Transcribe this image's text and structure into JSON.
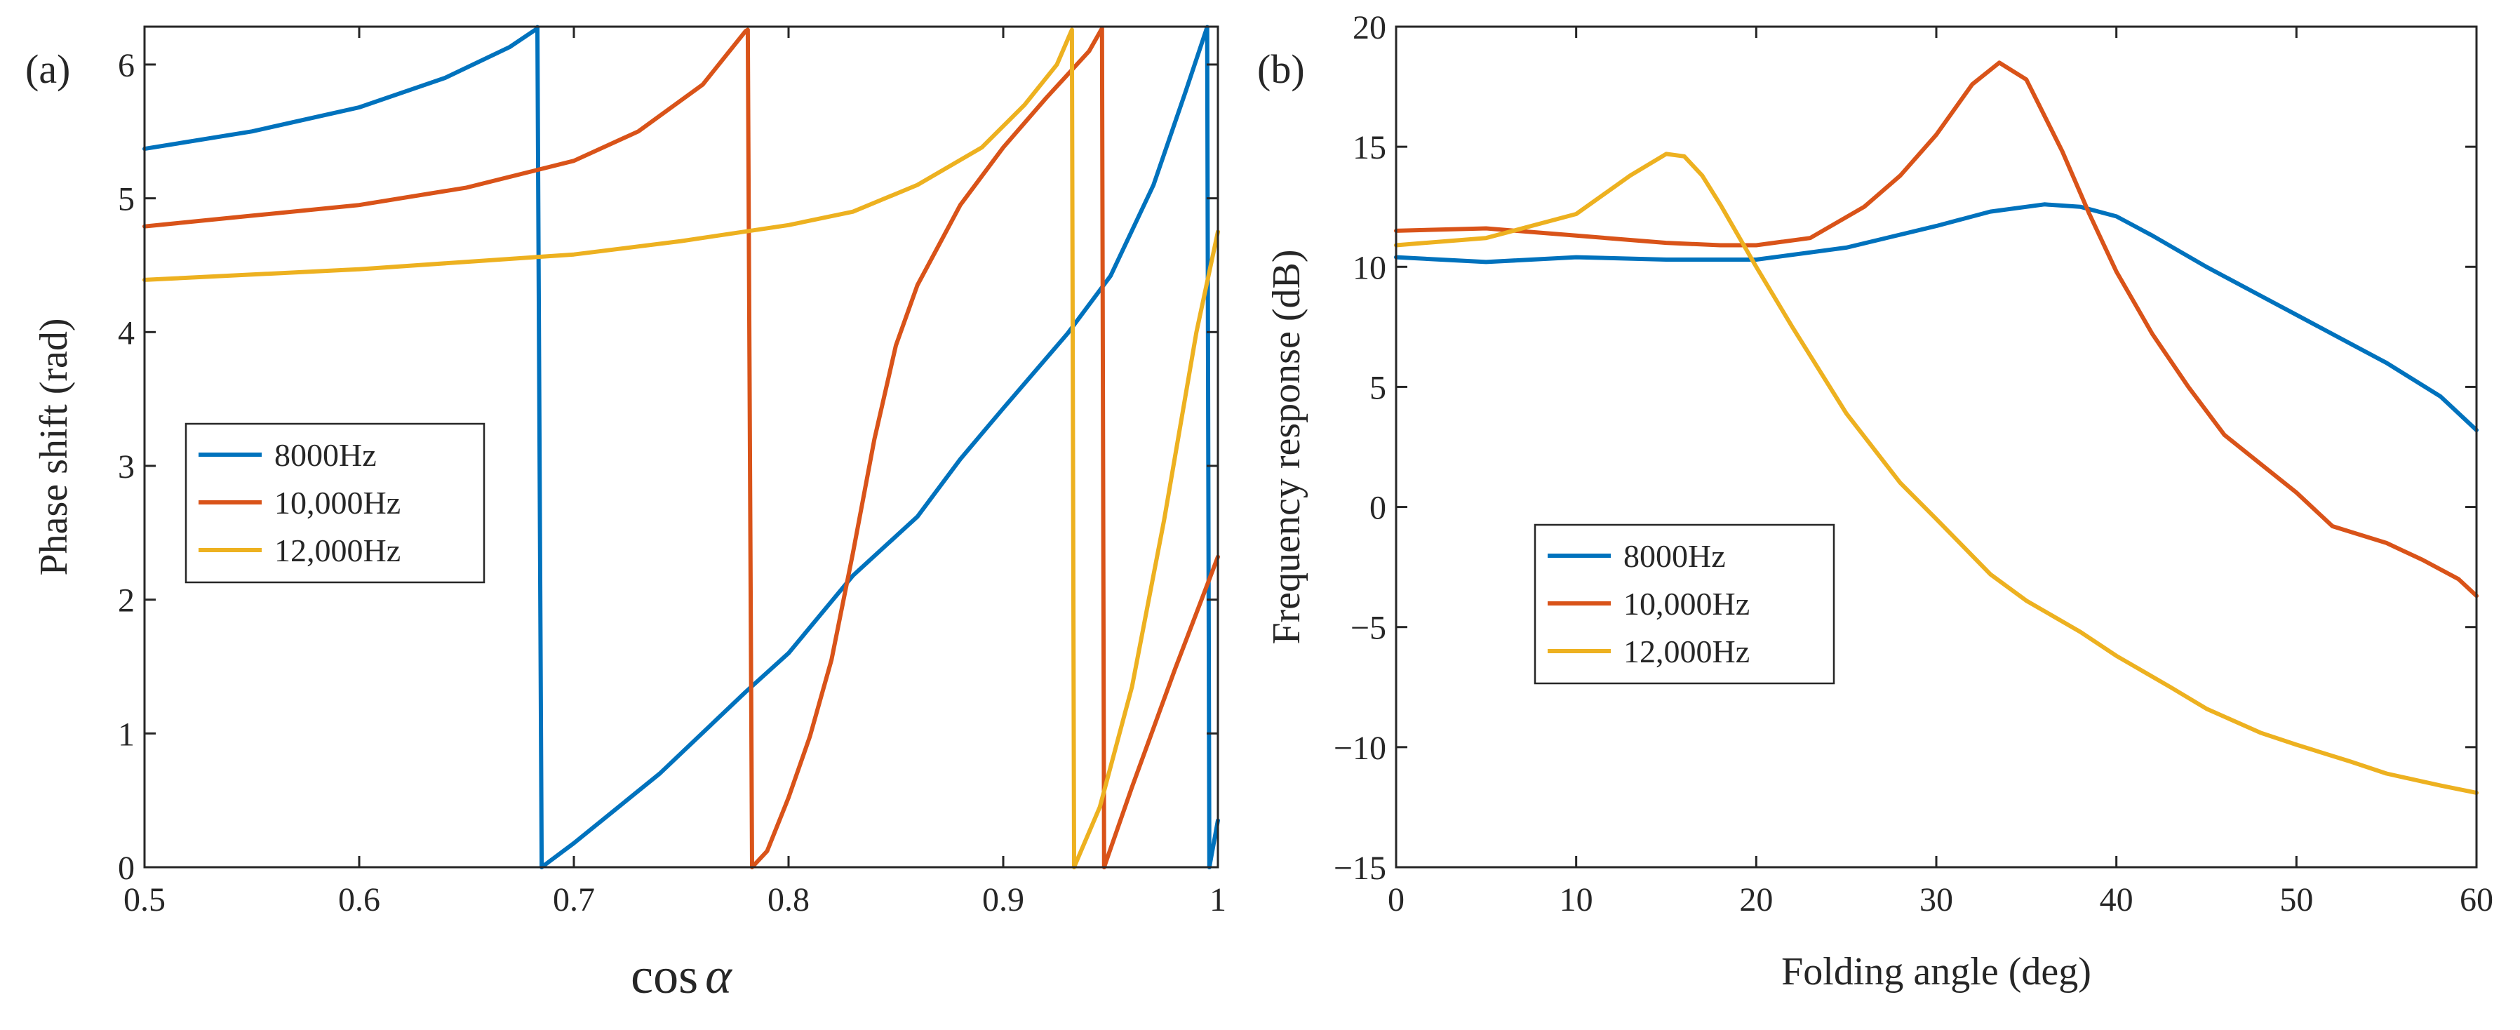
{
  "colors": {
    "blue": "#0072BD",
    "orange": "#D95319",
    "yellow": "#EDB120"
  },
  "chart_data": [
    {
      "type": "line",
      "panel_label": "(a)",
      "title": "",
      "xlabel_prefix": "cos",
      "xlabel_symbol": "α",
      "ylabel": "Phase shift (rad)",
      "xlim": [
        0.5,
        1
      ],
      "ylim": [
        0,
        6.283
      ],
      "xticks": [
        0.5,
        0.6,
        0.7,
        0.8,
        0.9,
        1
      ],
      "xtick_labels": [
        "0.5",
        "0.6",
        "0.7",
        "0.8",
        "0.9",
        "1"
      ],
      "yticks": [
        0,
        1,
        2,
        3,
        4,
        5,
        6
      ],
      "ytick_labels": [
        "0",
        "1",
        "2",
        "3",
        "4",
        "5",
        "6"
      ],
      "legend_position": "center-left",
      "series": [
        {
          "name": "8000Hz",
          "color": "#0072BD",
          "points": [
            [
              0.5,
              5.37
            ],
            [
              0.55,
              5.5
            ],
            [
              0.6,
              5.68
            ],
            [
              0.64,
              5.9
            ],
            [
              0.67,
              6.13
            ],
            [
              0.683,
              6.27
            ],
            [
              0.683,
              6.28
            ],
            [
              0.685,
              0.0
            ],
            [
              0.7,
              0.18
            ],
            [
              0.74,
              0.7
            ],
            [
              0.78,
              1.31
            ],
            [
              0.8,
              1.6
            ],
            [
              0.83,
              2.18
            ],
            [
              0.86,
              2.62
            ],
            [
              0.88,
              3.05
            ],
            [
              0.9,
              3.43
            ],
            [
              0.93,
              3.99
            ],
            [
              0.95,
              4.42
            ],
            [
              0.97,
              5.1
            ],
            [
              0.985,
              5.8
            ],
            [
              0.995,
              6.28
            ],
            [
              0.996,
              0.0
            ],
            [
              1.0,
              0.35
            ]
          ]
        },
        {
          "name": "10,000Hz",
          "color": "#D95319",
          "points": [
            [
              0.5,
              4.79
            ],
            [
              0.55,
              4.87
            ],
            [
              0.6,
              4.95
            ],
            [
              0.65,
              5.08
            ],
            [
              0.7,
              5.28
            ],
            [
              0.73,
              5.5
            ],
            [
              0.76,
              5.85
            ],
            [
              0.77,
              6.05
            ],
            [
              0.78,
              6.25
            ],
            [
              0.781,
              6.26
            ],
            [
              0.783,
              0.0
            ],
            [
              0.79,
              0.12
            ],
            [
              0.8,
              0.52
            ],
            [
              0.81,
              0.98
            ],
            [
              0.82,
              1.55
            ],
            [
              0.83,
              2.35
            ],
            [
              0.84,
              3.2
            ],
            [
              0.85,
              3.9
            ],
            [
              0.86,
              4.35
            ],
            [
              0.87,
              4.65
            ],
            [
              0.88,
              4.95
            ],
            [
              0.9,
              5.38
            ],
            [
              0.92,
              5.75
            ],
            [
              0.94,
              6.1
            ],
            [
              0.946,
              6.27
            ],
            [
              0.947,
              0.0
            ],
            [
              0.96,
              0.6
            ],
            [
              0.98,
              1.48
            ],
            [
              1.0,
              2.32
            ]
          ]
        },
        {
          "name": "12,000Hz",
          "color": "#EDB120",
          "points": [
            [
              0.5,
              4.39
            ],
            [
              0.6,
              4.47
            ],
            [
              0.7,
              4.58
            ],
            [
              0.75,
              4.68
            ],
            [
              0.8,
              4.8
            ],
            [
              0.83,
              4.9
            ],
            [
              0.86,
              5.1
            ],
            [
              0.89,
              5.38
            ],
            [
              0.91,
              5.7
            ],
            [
              0.925,
              6.0
            ],
            [
              0.932,
              6.26
            ],
            [
              0.933,
              0.0
            ],
            [
              0.945,
              0.45
            ],
            [
              0.96,
              1.35
            ],
            [
              0.975,
              2.6
            ],
            [
              0.99,
              4.0
            ],
            [
              1.0,
              4.75
            ]
          ]
        }
      ]
    },
    {
      "type": "line",
      "panel_label": "(b)",
      "title": "",
      "xlabel": "Folding angle (deg)",
      "ylabel": "Frequency response (dB)",
      "xlim": [
        0,
        60
      ],
      "ylim": [
        -15,
        20
      ],
      "xticks": [
        0,
        10,
        20,
        30,
        40,
        50,
        60
      ],
      "xtick_labels": [
        "0",
        "10",
        "20",
        "30",
        "40",
        "50",
        "60"
      ],
      "yticks": [
        -15,
        -10,
        -5,
        0,
        5,
        10,
        15,
        20
      ],
      "ytick_labels": [
        "−15",
        "−10",
        "−5",
        "0",
        "5",
        "10",
        "15",
        "20"
      ],
      "legend_position": "lower-left",
      "series": [
        {
          "name": "8000Hz",
          "color": "#0072BD",
          "points": [
            [
              0,
              10.4
            ],
            [
              5,
              10.2
            ],
            [
              10,
              10.4
            ],
            [
              15,
              10.3
            ],
            [
              20,
              10.3
            ],
            [
              25,
              10.8
            ],
            [
              30,
              11.7
            ],
            [
              33,
              12.3
            ],
            [
              36,
              12.6
            ],
            [
              38,
              12.5
            ],
            [
              40,
              12.1
            ],
            [
              42,
              11.3
            ],
            [
              45,
              10.0
            ],
            [
              48,
              8.8
            ],
            [
              50,
              8.0
            ],
            [
              53,
              6.8
            ],
            [
              55,
              6.0
            ],
            [
              58,
              4.6
            ],
            [
              60,
              3.2
            ]
          ]
        },
        {
          "name": "10,000Hz",
          "color": "#D95319",
          "points": [
            [
              0,
              11.5
            ],
            [
              5,
              11.6
            ],
            [
              10,
              11.3
            ],
            [
              15,
              11.0
            ],
            [
              18,
              10.9
            ],
            [
              20,
              10.9
            ],
            [
              23,
              11.2
            ],
            [
              26,
              12.5
            ],
            [
              28,
              13.8
            ],
            [
              30,
              15.5
            ],
            [
              32,
              17.6
            ],
            [
              33.5,
              18.5
            ],
            [
              35,
              17.8
            ],
            [
              37,
              14.8
            ],
            [
              38.5,
              12.2
            ],
            [
              40,
              9.8
            ],
            [
              42,
              7.2
            ],
            [
              44,
              5.0
            ],
            [
              46,
              3.0
            ],
            [
              48,
              1.8
            ],
            [
              50,
              0.6
            ],
            [
              52,
              -0.8
            ],
            [
              55,
              -1.5
            ],
            [
              57,
              -2.2
            ],
            [
              59,
              -3.0
            ],
            [
              60,
              -3.7
            ]
          ]
        },
        {
          "name": "12,000Hz",
          "color": "#EDB120",
          "points": [
            [
              0,
              10.9
            ],
            [
              5,
              11.2
            ],
            [
              10,
              12.2
            ],
            [
              13,
              13.8
            ],
            [
              15,
              14.7
            ],
            [
              16,
              14.6
            ],
            [
              17,
              13.8
            ],
            [
              18,
              12.6
            ],
            [
              20,
              10.0
            ],
            [
              22,
              7.5
            ],
            [
              25,
              3.9
            ],
            [
              28,
              1.0
            ],
            [
              30,
              -0.5
            ],
            [
              33,
              -2.8
            ],
            [
              35,
              -3.9
            ],
            [
              38,
              -5.2
            ],
            [
              40,
              -6.2
            ],
            [
              43,
              -7.5
            ],
            [
              45,
              -8.4
            ],
            [
              48,
              -9.4
            ],
            [
              50,
              -9.9
            ],
            [
              53,
              -10.6
            ],
            [
              55,
              -11.1
            ],
            [
              58,
              -11.6
            ],
            [
              60,
              -11.9
            ]
          ]
        }
      ]
    }
  ]
}
